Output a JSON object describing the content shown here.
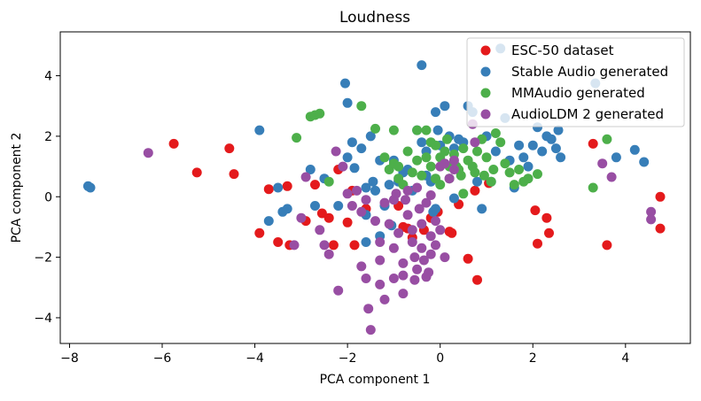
{
  "chart_data": {
    "type": "scatter",
    "title": "Loudness",
    "xlabel": "PCA component 1",
    "ylabel": "PCA component 2",
    "xlim": [
      -8.2,
      5.4
    ],
    "ylim": [
      -4.85,
      5.45
    ],
    "xticks": [
      -8,
      -6,
      -4,
      -2,
      0,
      2,
      4
    ],
    "yticks": [
      -4,
      -2,
      0,
      2,
      4
    ],
    "xtick_labels": [
      "−8",
      "−6",
      "−4",
      "−2",
      "0",
      "2",
      "4"
    ],
    "ytick_labels": [
      "−4",
      "−2",
      "0",
      "2",
      "4"
    ],
    "grid": false,
    "legend_position": "top-right",
    "series": [
      {
        "name": "ESC-50 dataset",
        "color": "#e41a1c",
        "points": [
          [
            -5.75,
            1.75
          ],
          [
            -5.25,
            0.8
          ],
          [
            -4.55,
            1.6
          ],
          [
            -4.45,
            0.75
          ],
          [
            -3.7,
            0.25
          ],
          [
            -3.5,
            -1.5
          ],
          [
            -3.3,
            0.35
          ],
          [
            -3.25,
            -1.6
          ],
          [
            -2.9,
            -0.8
          ],
          [
            -2.7,
            0.4
          ],
          [
            -2.55,
            -0.55
          ],
          [
            -2.4,
            -0.7
          ],
          [
            -2.3,
            -1.6
          ],
          [
            -2.2,
            0.9
          ],
          [
            -2.0,
            -0.85
          ],
          [
            -1.9,
            0.2
          ],
          [
            -1.85,
            -1.6
          ],
          [
            -3.9,
            -1.2
          ],
          [
            -0.8,
            -1.0
          ],
          [
            -0.7,
            -1.05
          ],
          [
            -0.6,
            -1.35
          ],
          [
            -0.35,
            -1.1
          ],
          [
            -0.2,
            -0.7
          ],
          [
            -0.05,
            -0.5
          ],
          [
            0.2,
            -1.15
          ],
          [
            0.25,
            -1.2
          ],
          [
            0.4,
            -0.25
          ],
          [
            0.6,
            -2.05
          ],
          [
            0.75,
            0.2
          ],
          [
            0.8,
            -2.75
          ],
          [
            1.05,
            0.45
          ],
          [
            2.05,
            -0.45
          ],
          [
            2.1,
            -1.55
          ],
          [
            2.3,
            -0.7
          ],
          [
            2.35,
            -1.2
          ],
          [
            3.3,
            1.75
          ],
          [
            3.6,
            -1.6
          ],
          [
            4.75,
            0.0
          ],
          [
            4.75,
            -1.05
          ],
          [
            -1.6,
            -0.4
          ],
          [
            -0.9,
            -0.3
          ]
        ]
      },
      {
        "name": "Stable Audio generated",
        "color": "#377eb8",
        "points": [
          [
            -7.6,
            0.35
          ],
          [
            -7.55,
            0.3
          ],
          [
            -3.9,
            2.2
          ],
          [
            -3.7,
            -0.8
          ],
          [
            -3.5,
            0.3
          ],
          [
            -3.4,
            -0.5
          ],
          [
            -3.3,
            -0.4
          ],
          [
            -2.8,
            0.9
          ],
          [
            -2.7,
            -0.3
          ],
          [
            -2.5,
            0.6
          ],
          [
            -2.2,
            -0.3
          ],
          [
            -2.05,
            3.75
          ],
          [
            -2.0,
            3.1
          ],
          [
            -2.0,
            1.3
          ],
          [
            -1.9,
            1.8
          ],
          [
            -1.85,
            0.95
          ],
          [
            -1.7,
            1.6
          ],
          [
            -1.6,
            0.3
          ],
          [
            -1.6,
            -0.6
          ],
          [
            -1.6,
            -1.5
          ],
          [
            -1.5,
            2.0
          ],
          [
            -1.45,
            0.5
          ],
          [
            -1.4,
            0.2
          ],
          [
            -1.3,
            1.2
          ],
          [
            -1.3,
            -1.3
          ],
          [
            -1.2,
            -0.3
          ],
          [
            -1.1,
            0.4
          ],
          [
            -1.0,
            1.2
          ],
          [
            -0.9,
            0.5
          ],
          [
            -0.8,
            0.8
          ],
          [
            -0.7,
            0.9
          ],
          [
            -0.6,
            0.2
          ],
          [
            -0.5,
            2.2
          ],
          [
            -0.4,
            1.8
          ],
          [
            -0.3,
            1.5
          ],
          [
            -0.3,
            0.7
          ],
          [
            -0.2,
            0.5
          ],
          [
            -0.15,
            -0.5
          ],
          [
            -0.1,
            2.8
          ],
          [
            -0.05,
            2.2
          ],
          [
            0.0,
            1.7
          ],
          [
            -0.4,
            4.35
          ],
          [
            0.1,
            3.0
          ],
          [
            0.2,
            2.0
          ],
          [
            0.3,
            1.6
          ],
          [
            0.4,
            1.9
          ],
          [
            0.5,
            1.8
          ],
          [
            0.6,
            3.0
          ],
          [
            0.7,
            2.8
          ],
          [
            0.8,
            0.5
          ],
          [
            0.9,
            -0.4
          ],
          [
            1.0,
            2.0
          ],
          [
            1.1,
            0.5
          ],
          [
            1.2,
            1.5
          ],
          [
            1.3,
            4.9
          ],
          [
            1.4,
            2.6
          ],
          [
            1.5,
            1.2
          ],
          [
            1.6,
            0.3
          ],
          [
            1.7,
            1.7
          ],
          [
            1.8,
            1.3
          ],
          [
            1.9,
            1.0
          ],
          [
            2.0,
            1.7
          ],
          [
            2.1,
            2.3
          ],
          [
            2.2,
            1.5
          ],
          [
            2.3,
            2.0
          ],
          [
            2.4,
            1.9
          ],
          [
            2.5,
            1.6
          ],
          [
            2.55,
            2.2
          ],
          [
            2.6,
            1.3
          ],
          [
            3.35,
            3.75
          ],
          [
            3.8,
            1.3
          ],
          [
            4.2,
            1.55
          ],
          [
            4.4,
            1.15
          ],
          [
            -0.1,
            -0.4
          ],
          [
            0.3,
            -0.05
          ],
          [
            -1.05,
            -0.95
          ]
        ]
      },
      {
        "name": "MMAudio generated",
        "color": "#4daf4a",
        "points": [
          [
            -3.1,
            1.95
          ],
          [
            -2.8,
            2.65
          ],
          [
            -2.7,
            2.7
          ],
          [
            -2.6,
            2.75
          ],
          [
            -2.4,
            0.5
          ],
          [
            -1.7,
            3.0
          ],
          [
            -1.4,
            2.25
          ],
          [
            -1.2,
            1.3
          ],
          [
            -1.1,
            0.9
          ],
          [
            -1.0,
            1.1
          ],
          [
            -0.9,
            0.6
          ],
          [
            -0.9,
            1.0
          ],
          [
            -0.8,
            0.4
          ],
          [
            -0.7,
            1.5
          ],
          [
            -0.6,
            0.8
          ],
          [
            -0.5,
            2.2
          ],
          [
            -0.5,
            1.2
          ],
          [
            -0.4,
            0.7
          ],
          [
            -0.3,
            1.3
          ],
          [
            -0.3,
            2.2
          ],
          [
            -0.2,
            1.0
          ],
          [
            -0.1,
            1.7
          ],
          [
            -0.1,
            0.6
          ],
          [
            0.0,
            1.3
          ],
          [
            0.0,
            0.4
          ],
          [
            0.1,
            1.5
          ],
          [
            0.2,
            1.0
          ],
          [
            0.2,
            0.6
          ],
          [
            0.3,
            1.4
          ],
          [
            0.35,
            1.0
          ],
          [
            0.4,
            0.9
          ],
          [
            0.45,
            0.7
          ],
          [
            0.5,
            1.6
          ],
          [
            0.5,
            0.1
          ],
          [
            0.6,
            1.2
          ],
          [
            0.7,
            1.0
          ],
          [
            0.75,
            0.8
          ],
          [
            0.8,
            1.5
          ],
          [
            0.9,
            1.9
          ],
          [
            0.95,
            0.7
          ],
          [
            1.0,
            1.3
          ],
          [
            1.1,
            0.5
          ],
          [
            1.15,
            0.9
          ],
          [
            1.2,
            2.1
          ],
          [
            1.3,
            1.8
          ],
          [
            1.4,
            1.1
          ],
          [
            1.5,
            0.8
          ],
          [
            1.6,
            0.4
          ],
          [
            1.7,
            0.9
          ],
          [
            1.8,
            0.5
          ],
          [
            1.9,
            0.6
          ],
          [
            2.1,
            0.75
          ],
          [
            3.3,
            0.3
          ],
          [
            3.6,
            1.9
          ],
          [
            -1.0,
            2.2
          ],
          [
            -0.2,
            1.8
          ],
          [
            0.15,
            1.9
          ]
        ]
      },
      {
        "name": "AudioLDM 2 generated",
        "color": "#984ea3",
        "points": [
          [
            -6.3,
            1.45
          ],
          [
            -3.15,
            -1.6
          ],
          [
            -3.0,
            -0.7
          ],
          [
            -2.9,
            0.65
          ],
          [
            -2.6,
            -1.1
          ],
          [
            -2.5,
            -1.6
          ],
          [
            -2.4,
            -1.9
          ],
          [
            -2.25,
            1.5
          ],
          [
            -2.2,
            -3.1
          ],
          [
            -2.1,
            1.0
          ],
          [
            -2.0,
            0.1
          ],
          [
            -1.9,
            -0.3
          ],
          [
            -1.8,
            0.2
          ],
          [
            -1.7,
            -0.5
          ],
          [
            -1.7,
            -2.3
          ],
          [
            -1.6,
            -2.7
          ],
          [
            -1.55,
            -3.7
          ],
          [
            -1.5,
            -4.4
          ],
          [
            -1.4,
            -0.8
          ],
          [
            -1.3,
            -1.5
          ],
          [
            -1.3,
            -2.1
          ],
          [
            -1.3,
            -2.9
          ],
          [
            -1.2,
            -0.2
          ],
          [
            -1.2,
            -3.4
          ],
          [
            -1.1,
            -0.9
          ],
          [
            -1.0,
            -1.7
          ],
          [
            -1.0,
            -2.7
          ],
          [
            -0.95,
            0.1
          ],
          [
            -0.9,
            -1.2
          ],
          [
            -0.8,
            -2.2
          ],
          [
            -0.8,
            -2.6
          ],
          [
            -0.75,
            -0.1
          ],
          [
            -0.7,
            -0.6
          ],
          [
            -0.6,
            -1.1
          ],
          [
            -0.6,
            -1.5
          ],
          [
            -0.55,
            -2.0
          ],
          [
            -0.5,
            -2.4
          ],
          [
            -0.45,
            -0.4
          ],
          [
            -0.4,
            -0.9
          ],
          [
            -0.4,
            -1.7
          ],
          [
            -0.35,
            -2.1
          ],
          [
            -0.3,
            -0.2
          ],
          [
            -0.25,
            -2.5
          ],
          [
            -0.2,
            -1.3
          ],
          [
            -0.2,
            -1.9
          ],
          [
            -0.1,
            -0.8
          ],
          [
            -0.1,
            -1.6
          ],
          [
            0.0,
            -1.1
          ],
          [
            0.0,
            1.0
          ],
          [
            0.1,
            -2.0
          ],
          [
            0.1,
            1.1
          ],
          [
            0.2,
            0.6
          ],
          [
            0.3,
            1.2
          ],
          [
            0.3,
            0.9
          ],
          [
            -0.5,
            0.3
          ],
          [
            -1.6,
            -0.1
          ],
          [
            -1.0,
            -0.1
          ],
          [
            0.7,
            2.4
          ],
          [
            0.75,
            1.8
          ],
          [
            -0.8,
            -3.2
          ],
          [
            -0.55,
            -2.75
          ],
          [
            -0.3,
            -2.65
          ],
          [
            3.5,
            1.1
          ],
          [
            3.7,
            0.65
          ],
          [
            4.55,
            -0.5
          ],
          [
            4.55,
            -0.75
          ],
          [
            -0.2,
            0.05
          ],
          [
            -0.7,
            0.2
          ]
        ]
      }
    ]
  }
}
